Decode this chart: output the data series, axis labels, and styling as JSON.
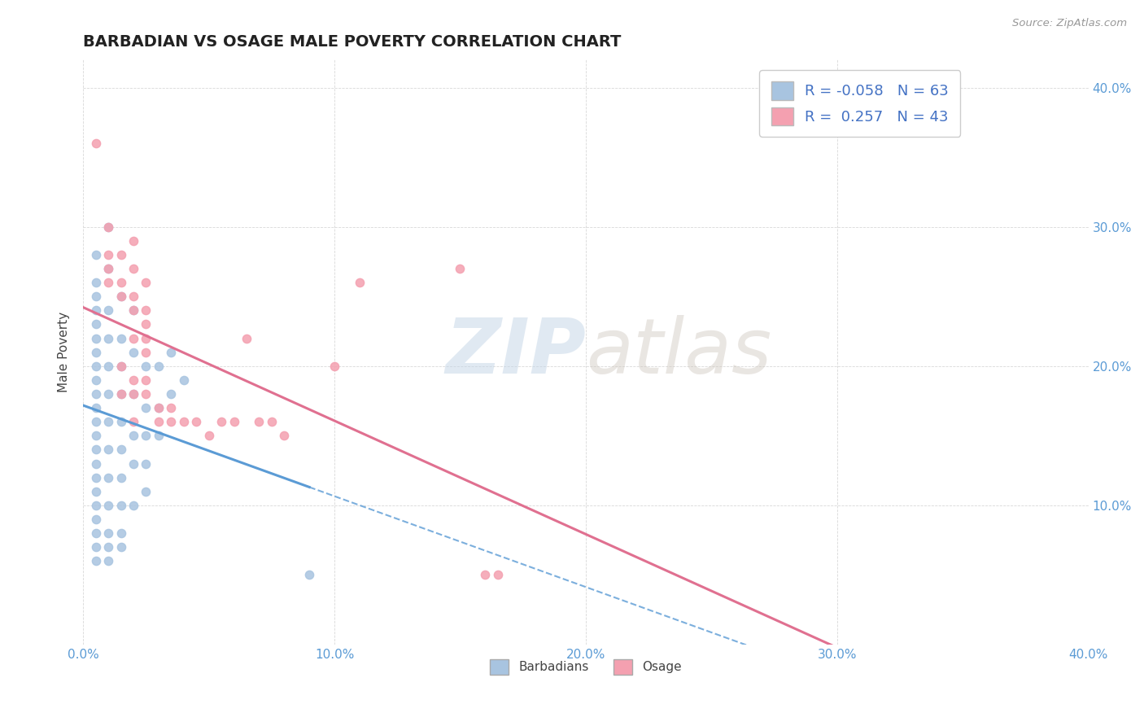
{
  "title": "BARBADIAN VS OSAGE MALE POVERTY CORRELATION CHART",
  "source": "Source: ZipAtlas.com",
  "xlabel": "",
  "ylabel": "Male Poverty",
  "xlim": [
    0.0,
    0.4
  ],
  "ylim": [
    0.0,
    0.42
  ],
  "xtick_labels": [
    "0.0%",
    "10.0%",
    "20.0%",
    "30.0%",
    "40.0%"
  ],
  "xtick_vals": [
    0.0,
    0.1,
    0.2,
    0.3,
    0.4
  ],
  "ytick_labels_right": [
    "10.0%",
    "20.0%",
    "30.0%",
    "40.0%"
  ],
  "ytick_vals_right": [
    0.1,
    0.2,
    0.3,
    0.4
  ],
  "barbadian_color": "#a8c4e0",
  "osage_color": "#f4a0b0",
  "barbadian_line_color": "#5b9bd5",
  "osage_line_color": "#e07090",
  "R_barbadian": -0.058,
  "N_barbadian": 63,
  "R_osage": 0.257,
  "N_osage": 43,
  "watermark_zip": "ZIP",
  "watermark_atlas": "atlas",
  "legend_label_1": "Barbadians",
  "legend_label_2": "Osage",
  "barbadian_scatter": [
    [
      0.005,
      0.28
    ],
    [
      0.005,
      0.26
    ],
    [
      0.005,
      0.25
    ],
    [
      0.005,
      0.24
    ],
    [
      0.005,
      0.23
    ],
    [
      0.005,
      0.22
    ],
    [
      0.005,
      0.21
    ],
    [
      0.005,
      0.2
    ],
    [
      0.005,
      0.19
    ],
    [
      0.005,
      0.18
    ],
    [
      0.005,
      0.17
    ],
    [
      0.005,
      0.16
    ],
    [
      0.005,
      0.15
    ],
    [
      0.005,
      0.14
    ],
    [
      0.005,
      0.13
    ],
    [
      0.005,
      0.12
    ],
    [
      0.005,
      0.11
    ],
    [
      0.005,
      0.1
    ],
    [
      0.005,
      0.09
    ],
    [
      0.005,
      0.08
    ],
    [
      0.005,
      0.07
    ],
    [
      0.005,
      0.06
    ],
    [
      0.01,
      0.3
    ],
    [
      0.01,
      0.27
    ],
    [
      0.01,
      0.24
    ],
    [
      0.01,
      0.22
    ],
    [
      0.01,
      0.2
    ],
    [
      0.01,
      0.18
    ],
    [
      0.01,
      0.16
    ],
    [
      0.01,
      0.14
    ],
    [
      0.01,
      0.12
    ],
    [
      0.01,
      0.1
    ],
    [
      0.01,
      0.08
    ],
    [
      0.01,
      0.07
    ],
    [
      0.01,
      0.06
    ],
    [
      0.015,
      0.25
    ],
    [
      0.015,
      0.22
    ],
    [
      0.015,
      0.2
    ],
    [
      0.015,
      0.18
    ],
    [
      0.015,
      0.16
    ],
    [
      0.015,
      0.14
    ],
    [
      0.015,
      0.12
    ],
    [
      0.015,
      0.1
    ],
    [
      0.015,
      0.08
    ],
    [
      0.015,
      0.07
    ],
    [
      0.02,
      0.24
    ],
    [
      0.02,
      0.21
    ],
    [
      0.02,
      0.18
    ],
    [
      0.02,
      0.15
    ],
    [
      0.02,
      0.13
    ],
    [
      0.02,
      0.1
    ],
    [
      0.025,
      0.2
    ],
    [
      0.025,
      0.17
    ],
    [
      0.025,
      0.15
    ],
    [
      0.025,
      0.13
    ],
    [
      0.025,
      0.11
    ],
    [
      0.03,
      0.2
    ],
    [
      0.03,
      0.17
    ],
    [
      0.03,
      0.15
    ],
    [
      0.035,
      0.21
    ],
    [
      0.035,
      0.18
    ],
    [
      0.04,
      0.19
    ],
    [
      0.09,
      0.05
    ]
  ],
  "osage_scatter": [
    [
      0.005,
      0.36
    ],
    [
      0.01,
      0.3
    ],
    [
      0.01,
      0.28
    ],
    [
      0.01,
      0.27
    ],
    [
      0.01,
      0.26
    ],
    [
      0.015,
      0.28
    ],
    [
      0.015,
      0.26
    ],
    [
      0.015,
      0.25
    ],
    [
      0.015,
      0.2
    ],
    [
      0.015,
      0.18
    ],
    [
      0.02,
      0.29
    ],
    [
      0.02,
      0.27
    ],
    [
      0.02,
      0.25
    ],
    [
      0.02,
      0.24
    ],
    [
      0.02,
      0.22
    ],
    [
      0.02,
      0.19
    ],
    [
      0.02,
      0.18
    ],
    [
      0.02,
      0.16
    ],
    [
      0.025,
      0.26
    ],
    [
      0.025,
      0.24
    ],
    [
      0.025,
      0.23
    ],
    [
      0.025,
      0.22
    ],
    [
      0.025,
      0.21
    ],
    [
      0.025,
      0.19
    ],
    [
      0.025,
      0.18
    ],
    [
      0.03,
      0.17
    ],
    [
      0.03,
      0.16
    ],
    [
      0.035,
      0.17
    ],
    [
      0.035,
      0.16
    ],
    [
      0.04,
      0.16
    ],
    [
      0.045,
      0.16
    ],
    [
      0.05,
      0.15
    ],
    [
      0.055,
      0.16
    ],
    [
      0.06,
      0.16
    ],
    [
      0.065,
      0.22
    ],
    [
      0.07,
      0.16
    ],
    [
      0.075,
      0.16
    ],
    [
      0.08,
      0.15
    ],
    [
      0.1,
      0.2
    ],
    [
      0.11,
      0.26
    ],
    [
      0.15,
      0.27
    ],
    [
      0.16,
      0.05
    ],
    [
      0.165,
      0.05
    ]
  ]
}
